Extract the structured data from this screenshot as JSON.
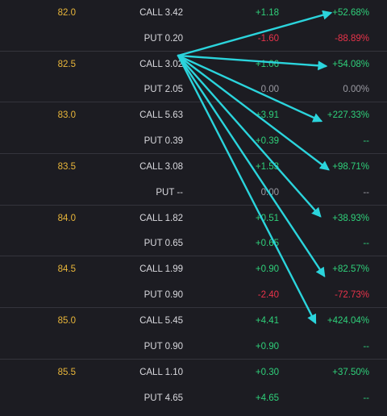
{
  "chain": [
    {
      "strike": "82.0",
      "call": {
        "label": "CALL 3.42",
        "change": "+1.18",
        "pct": "+52.68%",
        "dir": "up"
      },
      "put": {
        "label": "PUT 0.20",
        "change": "-1.60",
        "pct": "-88.89%",
        "dir": "down"
      }
    },
    {
      "strike": "82.5",
      "call": {
        "label": "CALL 3.02",
        "change": "+1.06",
        "pct": "+54.08%",
        "dir": "up"
      },
      "put": {
        "label": "PUT 2.05",
        "change": "0.00",
        "pct": "0.00%",
        "dir": "flat"
      }
    },
    {
      "strike": "83.0",
      "call": {
        "label": "CALL 5.63",
        "change": "+3.91",
        "pct": "+227.33%",
        "dir": "up"
      },
      "put": {
        "label": "PUT 0.39",
        "change": "+0.39",
        "pct": "--",
        "dir": "up"
      }
    },
    {
      "strike": "83.5",
      "call": {
        "label": "CALL 3.08",
        "change": "+1.53",
        "pct": "+98.71%",
        "dir": "up"
      },
      "put": {
        "label": "PUT --",
        "change": "0.00",
        "pct": "--",
        "dir": "flat"
      }
    },
    {
      "strike": "84.0",
      "call": {
        "label": "CALL 1.82",
        "change": "+0.51",
        "pct": "+38.93%",
        "dir": "up"
      },
      "put": {
        "label": "PUT 0.65",
        "change": "+0.65",
        "pct": "--",
        "dir": "up"
      }
    },
    {
      "strike": "84.5",
      "call": {
        "label": "CALL 1.99",
        "change": "+0.90",
        "pct": "+82.57%",
        "dir": "up"
      },
      "put": {
        "label": "PUT 0.90",
        "change": "-2.40",
        "pct": "-72.73%",
        "dir": "down"
      }
    },
    {
      "strike": "85.0",
      "call": {
        "label": "CALL 5.45",
        "change": "+4.41",
        "pct": "+424.04%",
        "dir": "up"
      },
      "put": {
        "label": "PUT 0.90",
        "change": "+0.90",
        "pct": "--",
        "dir": "up"
      }
    },
    {
      "strike": "85.5",
      "call": {
        "label": "CALL 1.10",
        "change": "+0.30",
        "pct": "+37.50%",
        "dir": "up"
      },
      "put": {
        "label": "PUT 4.65",
        "change": "+4.65",
        "pct": "--",
        "dir": "up"
      }
    }
  ],
  "colors": {
    "strike": "#e9b63a",
    "up": "#2fd07a",
    "down": "#e8334a",
    "flat": "#9a9aa2",
    "arrow": "#2bd4dc",
    "background": "#1c1c22"
  }
}
